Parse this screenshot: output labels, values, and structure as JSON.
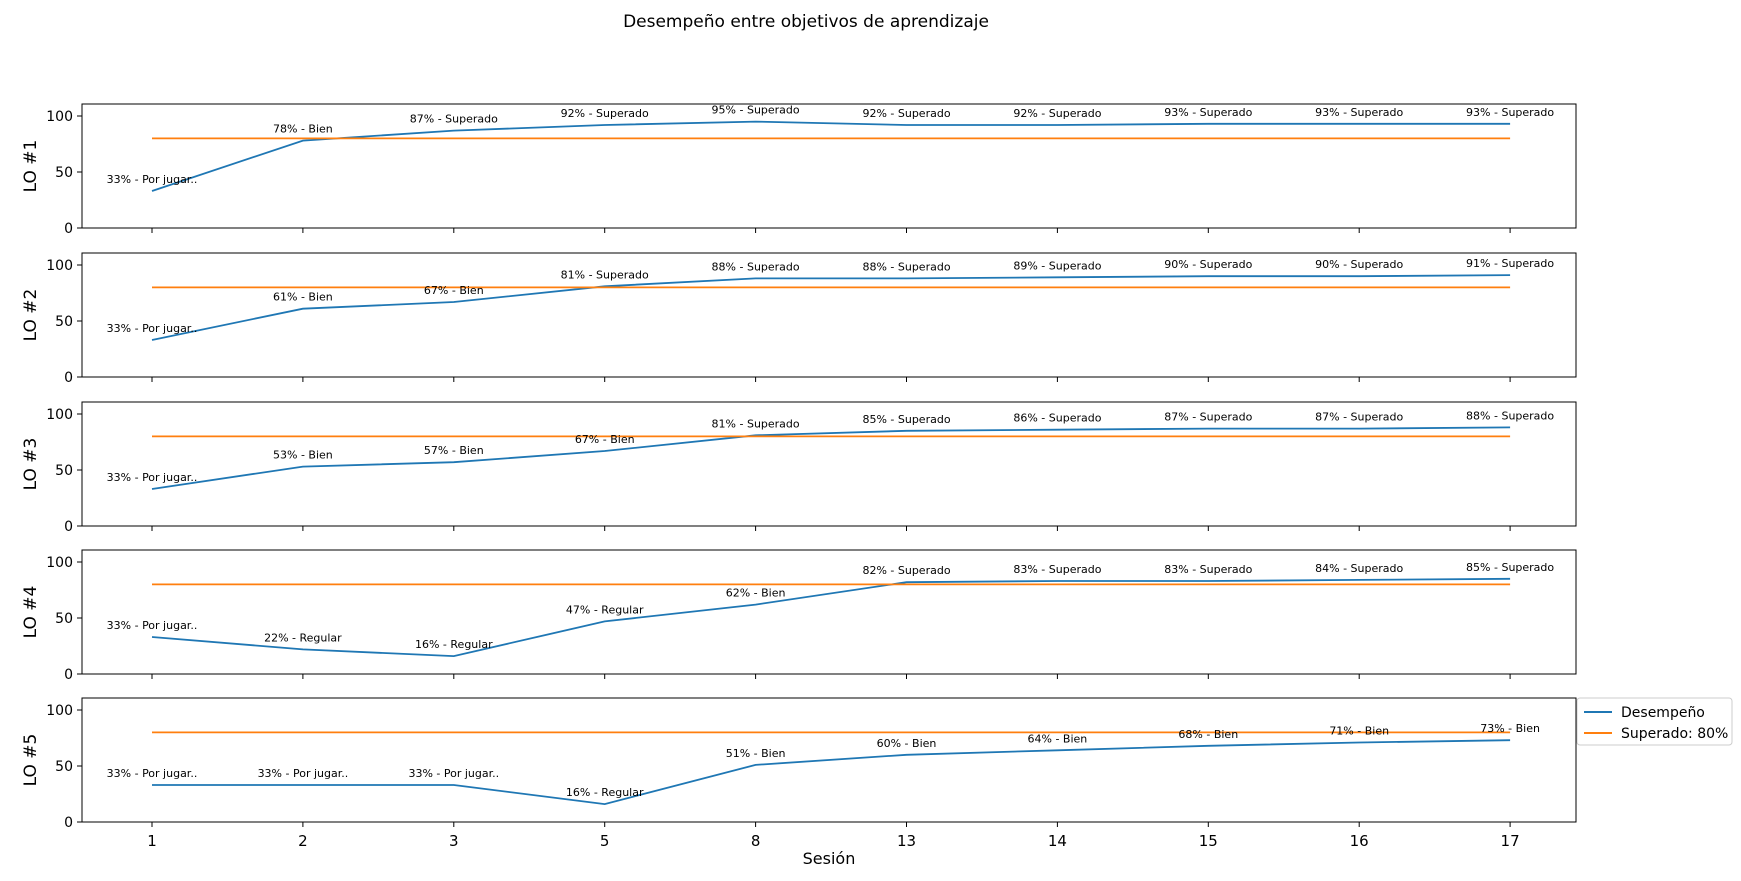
{
  "figure": {
    "title": "Desempeño entre objetivos de aprendizaje",
    "xlabel": "Sesión"
  },
  "colors": {
    "performance": "#1f77b4",
    "threshold": "#ff7f0e"
  },
  "legend": {
    "placement": "right, beside bottom panel",
    "entries": [
      "Desempeño",
      "Superado: 80%"
    ]
  },
  "chart_data": {
    "type": "line",
    "categories": [
      "1",
      "2",
      "3",
      "5",
      "8",
      "13",
      "14",
      "15",
      "16",
      "17"
    ],
    "ylim": [
      0,
      100
    ],
    "yticks": [
      0,
      50,
      100
    ],
    "grid": false,
    "panels": [
      {
        "ylabel": "LO #1",
        "series": [
          {
            "name": "Desempeño",
            "values": [
              33,
              78,
              87,
              92,
              95,
              92,
              92,
              93,
              93,
              93
            ],
            "labels": [
              "33% - Por jugar..",
              "78% - Bien",
              "87% - Superado",
              "92% - Superado",
              "95% - Superado",
              "92% - Superado",
              "92% - Superado",
              "93% - Superado",
              "93% - Superado",
              "93% - Superado"
            ]
          },
          {
            "name": "Superado: 80%",
            "values": [
              80,
              80,
              80,
              80,
              80,
              80,
              80,
              80,
              80,
              80
            ]
          }
        ]
      },
      {
        "ylabel": "LO #2",
        "series": [
          {
            "name": "Desempeño",
            "values": [
              33,
              61,
              67,
              81,
              88,
              88,
              89,
              90,
              90,
              91
            ],
            "labels": [
              "33% - Por jugar..",
              "61% - Bien",
              "67% - Bien",
              "81% - Superado",
              "88% - Superado",
              "88% - Superado",
              "89% - Superado",
              "90% - Superado",
              "90% - Superado",
              "91% - Superado"
            ]
          },
          {
            "name": "Superado: 80%",
            "values": [
              80,
              80,
              80,
              80,
              80,
              80,
              80,
              80,
              80,
              80
            ]
          }
        ]
      },
      {
        "ylabel": "LO #3",
        "series": [
          {
            "name": "Desempeño",
            "values": [
              33,
              53,
              57,
              67,
              81,
              85,
              86,
              87,
              87,
              88
            ],
            "labels": [
              "33% - Por jugar..",
              "53% - Bien",
              "57% - Bien",
              "67% - Bien",
              "81% - Superado",
              "85% - Superado",
              "86% - Superado",
              "87% - Superado",
              "87% - Superado",
              "88% - Superado"
            ]
          },
          {
            "name": "Superado: 80%",
            "values": [
              80,
              80,
              80,
              80,
              80,
              80,
              80,
              80,
              80,
              80
            ]
          }
        ]
      },
      {
        "ylabel": "LO #4",
        "series": [
          {
            "name": "Desempeño",
            "values": [
              33,
              22,
              16,
              47,
              62,
              82,
              83,
              83,
              84,
              85
            ],
            "labels": [
              "33% - Por jugar..",
              "22% - Regular",
              "16% - Regular",
              "47% - Regular",
              "62% - Bien",
              "82% - Superado",
              "83% - Superado",
              "83% - Superado",
              "84% - Superado",
              "85% - Superado"
            ]
          },
          {
            "name": "Superado: 80%",
            "values": [
              80,
              80,
              80,
              80,
              80,
              80,
              80,
              80,
              80,
              80
            ]
          }
        ]
      },
      {
        "ylabel": "LO #5",
        "series": [
          {
            "name": "Desempeño",
            "values": [
              33,
              33,
              33,
              16,
              51,
              60,
              64,
              68,
              71,
              73
            ],
            "labels": [
              "33% - Por jugar..",
              "33% - Por jugar..",
              "33% - Por jugar..",
              "16% - Regular",
              "51% - Bien",
              "60% - Bien",
              "64% - Bien",
              "68% - Bien",
              "71% - Bien",
              "73% - Bien"
            ]
          },
          {
            "name": "Superado: 80%",
            "values": [
              80,
              80,
              80,
              80,
              80,
              80,
              80,
              80,
              80,
              80
            ]
          }
        ]
      }
    ]
  }
}
